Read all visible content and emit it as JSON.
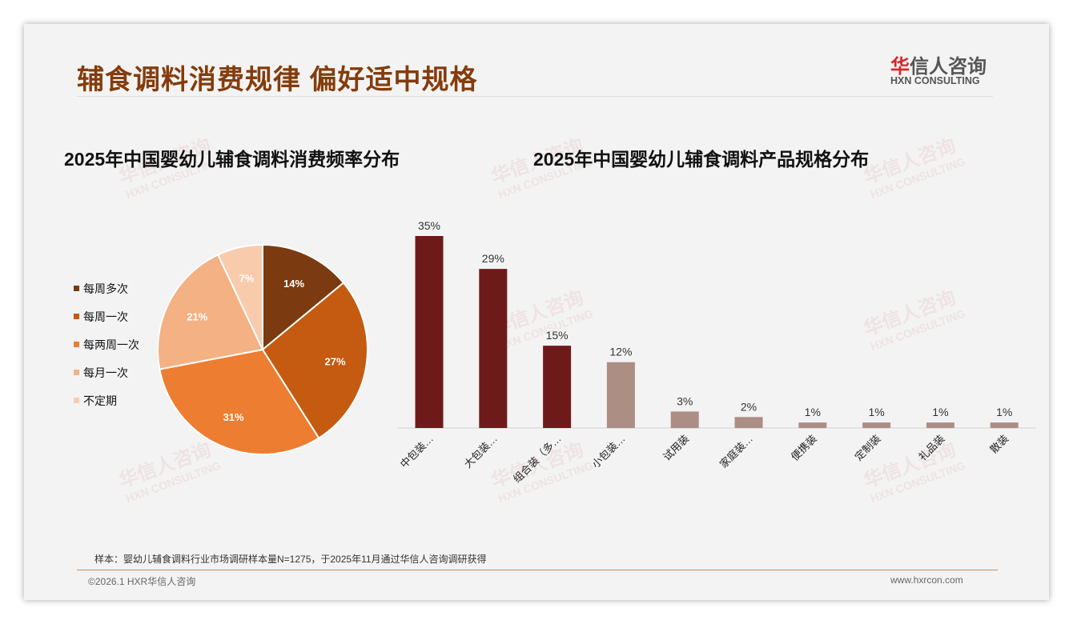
{
  "header": {
    "title": "辅食调料消费规律 偏好适中规格",
    "logo_cn_red": "华",
    "logo_cn": "信人咨询",
    "logo_en": "HXN CONSULTING"
  },
  "watermark": {
    "cn": "华信人咨询",
    "en": "HXN CONSULTING"
  },
  "chart_data": [
    {
      "type": "pie",
      "title": "2025年中国婴幼儿辅食调料消费频率分布",
      "categories": [
        "每周多次",
        "每周一次",
        "每两周一次",
        "每月一次",
        "不定期"
      ],
      "values": [
        14,
        27,
        31,
        21,
        7
      ],
      "labels": [
        "14%",
        "27%",
        "31%",
        "21%",
        "7%"
      ],
      "colors": [
        "#7b3a10",
        "#c55a11",
        "#ed7d31",
        "#f4b183",
        "#f8cbad"
      ],
      "legend": "left"
    },
    {
      "type": "bar",
      "title": "2025年中国婴幼儿辅食调料产品规格分布",
      "categories": [
        "中包装…",
        "大包装…",
        "组合装（多…",
        "小包装…",
        "试用装",
        "家庭装…",
        "便携装",
        "定制装",
        "礼品装",
        "散装"
      ],
      "values": [
        35,
        29,
        15,
        12,
        3,
        2,
        1,
        1,
        1,
        1
      ],
      "labels": [
        "35%",
        "29%",
        "15%",
        "12%",
        "3%",
        "2%",
        "1%",
        "1%",
        "1%",
        "1%"
      ],
      "colors": [
        "#6f1a1a",
        "#6f1a1a",
        "#6f1a1a",
        "#ac8e85",
        "#ac8e85",
        "#ac8e85",
        "#ac8e85",
        "#ac8e85",
        "#ac8e85",
        "#ac8e85"
      ],
      "ylim": [
        0,
        35
      ]
    }
  ],
  "footer": {
    "note": "样本：婴幼儿辅食调料行业市场调研样本量N=1275，于2025年11月通过华信人咨询调研获得",
    "copyright": "©2026.1 HXR华信人咨询",
    "url": "www.hxrcon.com"
  }
}
